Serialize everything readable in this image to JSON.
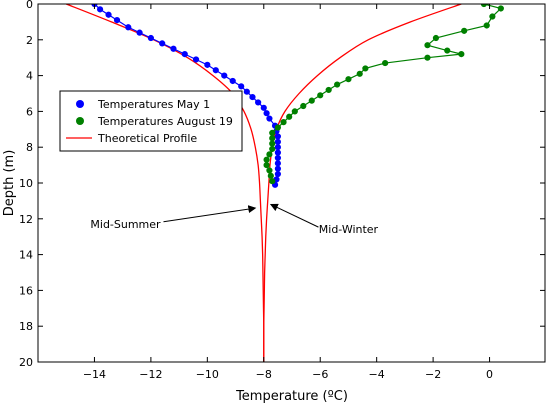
{
  "chart_data": {
    "type": "line",
    "xlabel": "Temperature (ºC)",
    "ylabel": "Depth (m)",
    "xlim": [
      -16,
      2
    ],
    "ylim": [
      20,
      0
    ],
    "y_inverted": true,
    "x_ticks": [
      -14,
      -12,
      -10,
      -8,
      -6,
      -4,
      -2,
      0
    ],
    "y_ticks": [
      0,
      2,
      4,
      6,
      8,
      10,
      12,
      14,
      16,
      18,
      20
    ],
    "grid": false,
    "legend_position": "upper-left",
    "series": [
      {
        "name": "Temperatures May 1",
        "color": "#0000ff",
        "marker": "circle",
        "points": [
          [
            -14.0,
            0.0
          ],
          [
            -13.8,
            0.3
          ],
          [
            -13.5,
            0.6
          ],
          [
            -13.2,
            0.9
          ],
          [
            -12.8,
            1.3
          ],
          [
            -12.4,
            1.6
          ],
          [
            -12.0,
            1.9
          ],
          [
            -11.6,
            2.2
          ],
          [
            -11.2,
            2.5
          ],
          [
            -10.8,
            2.8
          ],
          [
            -10.4,
            3.1
          ],
          [
            -10.0,
            3.4
          ],
          [
            -9.7,
            3.7
          ],
          [
            -9.4,
            4.0
          ],
          [
            -9.1,
            4.3
          ],
          [
            -8.8,
            4.6
          ],
          [
            -8.6,
            4.9
          ],
          [
            -8.4,
            5.2
          ],
          [
            -8.2,
            5.5
          ],
          [
            -8.0,
            5.8
          ],
          [
            -7.9,
            6.1
          ],
          [
            -7.8,
            6.4
          ],
          [
            -7.6,
            6.8
          ],
          [
            -7.55,
            7.1
          ],
          [
            -7.5,
            7.4
          ],
          [
            -7.5,
            7.7
          ],
          [
            -7.5,
            8.0
          ],
          [
            -7.5,
            8.3
          ],
          [
            -7.5,
            8.6
          ],
          [
            -7.5,
            8.9
          ],
          [
            -7.5,
            9.2
          ],
          [
            -7.5,
            9.5
          ],
          [
            -7.55,
            9.8
          ],
          [
            -7.6,
            10.1
          ]
        ]
      },
      {
        "name": "Temperatures August 19",
        "color": "#008000",
        "marker": "circle",
        "points": [
          [
            -0.2,
            0.0
          ],
          [
            0.4,
            0.25
          ],
          [
            0.1,
            0.7
          ],
          [
            -0.1,
            1.2
          ],
          [
            -0.9,
            1.5
          ],
          [
            -1.9,
            1.9
          ],
          [
            -2.2,
            2.3
          ],
          [
            -1.5,
            2.6
          ],
          [
            -1.0,
            2.8
          ],
          [
            -2.2,
            3.0
          ],
          [
            -3.7,
            3.3
          ],
          [
            -4.4,
            3.6
          ],
          [
            -4.6,
            3.9
          ],
          [
            -5.0,
            4.2
          ],
          [
            -5.4,
            4.5
          ],
          [
            -5.7,
            4.8
          ],
          [
            -6.0,
            5.1
          ],
          [
            -6.3,
            5.4
          ],
          [
            -6.6,
            5.7
          ],
          [
            -6.9,
            6.0
          ],
          [
            -7.1,
            6.3
          ],
          [
            -7.3,
            6.6
          ],
          [
            -7.5,
            6.9
          ],
          [
            -7.7,
            7.2
          ],
          [
            -7.7,
            7.5
          ],
          [
            -7.7,
            7.8
          ],
          [
            -7.7,
            8.1
          ],
          [
            -7.8,
            8.4
          ],
          [
            -7.9,
            8.7
          ],
          [
            -7.9,
            9.0
          ],
          [
            -7.8,
            9.3
          ],
          [
            -7.75,
            9.6
          ],
          [
            -7.7,
            9.9
          ]
        ]
      }
    ],
    "theoretical_profile": {
      "name": "Theoretical Profile",
      "color": "#ff0000",
      "mid_summer": [
        [
          -15.0,
          0
        ],
        [
          -13.4,
          1
        ],
        [
          -11.9,
          2
        ],
        [
          -10.7,
          3
        ],
        [
          -9.8,
          4
        ],
        [
          -9.1,
          5
        ],
        [
          -8.7,
          6
        ],
        [
          -8.45,
          7
        ],
        [
          -8.3,
          8
        ],
        [
          -8.2,
          9
        ],
        [
          -8.15,
          10
        ],
        [
          -8.12,
          11
        ],
        [
          -8.09,
          12
        ],
        [
          -8.06,
          13
        ],
        [
          -8.04,
          14
        ],
        [
          -8.03,
          15
        ],
        [
          -8.02,
          16
        ],
        [
          -8.01,
          17
        ],
        [
          -8.0,
          18
        ],
        [
          -8.0,
          19
        ],
        [
          -8.0,
          20
        ]
      ],
      "mid_winter": [
        [
          -1.0,
          0
        ],
        [
          -2.8,
          1
        ],
        [
          -4.3,
          2
        ],
        [
          -5.3,
          3
        ],
        [
          -6.1,
          4
        ],
        [
          -6.75,
          5
        ],
        [
          -7.25,
          6
        ],
        [
          -7.55,
          7
        ],
        [
          -7.7,
          8
        ],
        [
          -7.78,
          9
        ],
        [
          -7.82,
          10
        ],
        [
          -7.86,
          11
        ],
        [
          -7.9,
          12
        ],
        [
          -7.93,
          13
        ],
        [
          -7.95,
          14
        ],
        [
          -7.97,
          15
        ],
        [
          -7.98,
          16
        ],
        [
          -7.99,
          17
        ],
        [
          -8.0,
          18
        ],
        [
          -8.0,
          19
        ],
        [
          -8.0,
          20
        ]
      ]
    },
    "annotations": [
      {
        "text": "Mid-Summer",
        "arrow_to": [
          -8.3,
          11.4
        ],
        "text_at": [
          -12.9,
          12.5
        ]
      },
      {
        "text": "Mid-Winter",
        "arrow_to": [
          -7.75,
          11.2
        ],
        "text_at": [
          -5.0,
          12.8
        ]
      }
    ]
  }
}
